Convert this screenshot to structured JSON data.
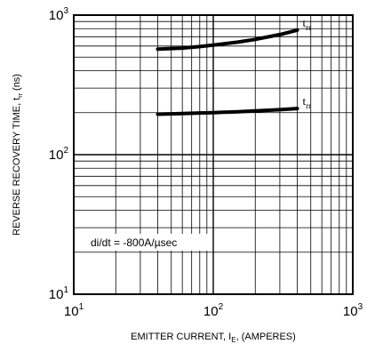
{
  "chart_data": {
    "type": "line",
    "title": "",
    "xlabel": "EMITTER CURRENT, I",
    "xlabel_sub": "E",
    "xlabel_suffix": ", (AMPERES)",
    "ylabel": "REVERSE RECOVERY TIME, t",
    "ylabel_sub": "rr",
    "ylabel_suffix": " (ns)",
    "x_scale": "log",
    "y_scale": "log",
    "xlim": [
      10,
      1000
    ],
    "ylim": [
      10,
      1000
    ],
    "grid": true,
    "x_ticks": [
      {
        "base": "10",
        "exp": "1"
      },
      {
        "base": "10",
        "exp": "2"
      },
      {
        "base": "10",
        "exp": "3"
      }
    ],
    "y_ticks": [
      {
        "base": "10",
        "exp": "1"
      },
      {
        "base": "10",
        "exp": "2"
      },
      {
        "base": "10",
        "exp": "3"
      }
    ],
    "annotation": "di/dt = -800A/µsec",
    "series": [
      {
        "name": "t",
        "name_sub": "rr",
        "x": [
          40,
          60,
          80,
          100,
          150,
          200,
          300,
          400
        ],
        "y": [
          570,
          580,
          595,
          610,
          640,
          670,
          725,
          780
        ]
      },
      {
        "name": "t",
        "name_sub": "rr",
        "x": [
          40,
          60,
          80,
          100,
          150,
          200,
          300,
          400
        ],
        "y": [
          195,
          197,
          199,
          200,
          203,
          206,
          210,
          214
        ]
      }
    ]
  }
}
